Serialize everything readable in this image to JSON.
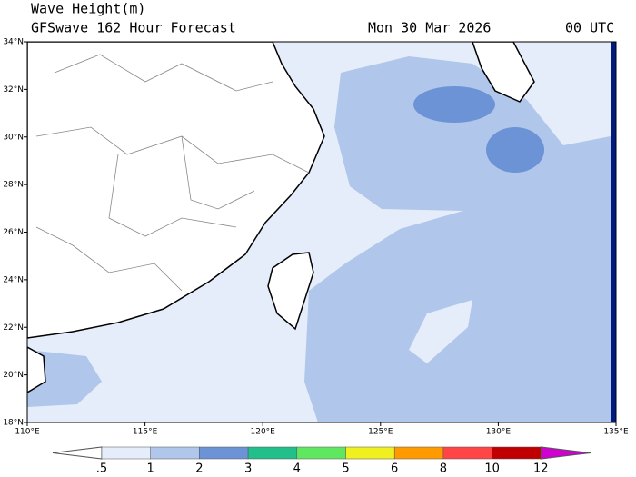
{
  "header": {
    "title": "Wave Height(m)",
    "subtitle": "GFSwave 162 Hour Forecast",
    "date": "Mon 30 Mar 2026",
    "time": "00 UTC"
  },
  "map": {
    "lat_labels": [
      "18°N",
      "20°N",
      "22°N",
      "24°N",
      "26°N",
      "28°N",
      "30°N",
      "32°N",
      "34°N"
    ],
    "lon_labels": [
      "110°E",
      "115°E",
      "120°E",
      "125°E",
      "130°E",
      "135°E"
    ]
  },
  "colorbar": {
    "labels": [
      ".5",
      "1",
      "2",
      "3",
      "4",
      "5",
      "6",
      "8",
      "10",
      "12"
    ],
    "colors": [
      "#ffffff",
      "#e4edf9",
      "#b0c6ea",
      "#6b93d6",
      "#22bf8a",
      "#5fe85f",
      "#f0f020",
      "#ff9a00",
      "#ff4545",
      "#c00000",
      "#d000d0"
    ]
  }
}
